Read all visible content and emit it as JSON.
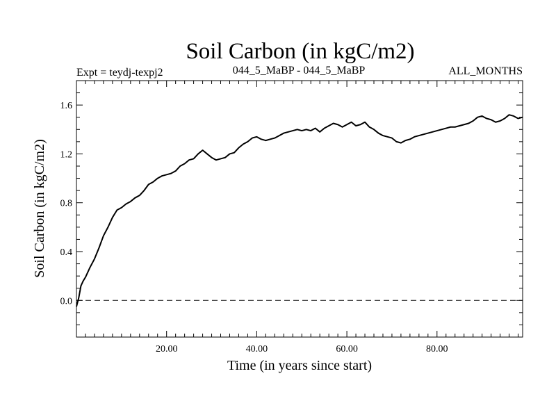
{
  "chart_data": {
    "type": "line",
    "title": "Soil Carbon (in kgC/m2)",
    "subtitle_left": "Expt = teydj-texpj2",
    "subtitle_center": "044_5_MaBP - 044_5_MaBP",
    "subtitle_right": "ALL_MONTHS",
    "xlabel": "Time (in years since start)",
    "ylabel": "Soil Carbon (in kgC/m2)",
    "xlim": [
      0,
      99
    ],
    "ylim": [
      -0.3,
      1.8
    ],
    "x_ticks": [
      20,
      40,
      60,
      80
    ],
    "x_tick_labels": [
      "20.00",
      "40.00",
      "60.00",
      "80.00"
    ],
    "y_ticks": [
      0.0,
      0.4,
      0.8,
      1.2,
      1.6
    ],
    "y_tick_labels": [
      "0.0",
      "0.4",
      "0.8",
      "1.2",
      "1.6"
    ],
    "reference_line": {
      "y": 0.0,
      "style": "dashed"
    },
    "series": [
      {
        "x": [
          0,
          0.5,
          1,
          1.5,
          2,
          3,
          4,
          5,
          6,
          7,
          8,
          9,
          10,
          11,
          12,
          13,
          14,
          15,
          16,
          17,
          18,
          19,
          20,
          21,
          22,
          23,
          24,
          25,
          26,
          27,
          28,
          29,
          30,
          31,
          32,
          33,
          34,
          35,
          36,
          37,
          38,
          39,
          40,
          41,
          42,
          43,
          44,
          45,
          46,
          47,
          48,
          49,
          50,
          51,
          52,
          53,
          54,
          55,
          56,
          57,
          58,
          59,
          60,
          61,
          62,
          63,
          64,
          65,
          66,
          67,
          68,
          69,
          70,
          71,
          72,
          73,
          74,
          75,
          76,
          77,
          78,
          79,
          80,
          81,
          82,
          83,
          84,
          85,
          86,
          87,
          88,
          89,
          90,
          91,
          92,
          93,
          94,
          95,
          96,
          97,
          98,
          99
        ],
        "y": [
          -0.05,
          0.02,
          0.12,
          0.16,
          0.19,
          0.27,
          0.34,
          0.43,
          0.53,
          0.6,
          0.68,
          0.74,
          0.76,
          0.79,
          0.81,
          0.84,
          0.86,
          0.9,
          0.95,
          0.97,
          1.0,
          1.02,
          1.03,
          1.04,
          1.06,
          1.1,
          1.12,
          1.15,
          1.16,
          1.2,
          1.23,
          1.2,
          1.17,
          1.15,
          1.16,
          1.17,
          1.2,
          1.21,
          1.25,
          1.28,
          1.3,
          1.33,
          1.34,
          1.32,
          1.31,
          1.32,
          1.33,
          1.35,
          1.37,
          1.38,
          1.39,
          1.4,
          1.39,
          1.4,
          1.39,
          1.41,
          1.38,
          1.41,
          1.43,
          1.45,
          1.44,
          1.42,
          1.44,
          1.46,
          1.43,
          1.44,
          1.46,
          1.42,
          1.4,
          1.37,
          1.35,
          1.34,
          1.33,
          1.3,
          1.29,
          1.31,
          1.32,
          1.34,
          1.35,
          1.36,
          1.37,
          1.38,
          1.39,
          1.4,
          1.41,
          1.42,
          1.42,
          1.43,
          1.44,
          1.45,
          1.47,
          1.5,
          1.51,
          1.49,
          1.48,
          1.46,
          1.47,
          1.49,
          1.52,
          1.51,
          1.49,
          1.5
        ]
      }
    ]
  }
}
